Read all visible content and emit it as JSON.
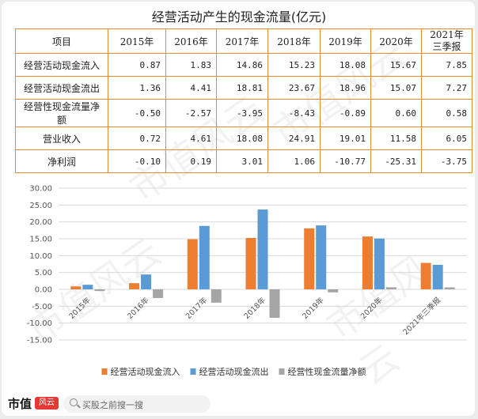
{
  "table": {
    "title": "经营活动产生的现金流量(亿元)",
    "header": [
      "项目",
      "2015年",
      "2016年",
      "2017年",
      "2018年",
      "2019年",
      "2020年",
      "2021年三季报"
    ],
    "rows": [
      {
        "label": "经营活动现金流入",
        "values": [
          "0.87",
          "1.83",
          "14.86",
          "15.23",
          "18.08",
          "15.67",
          "7.85"
        ]
      },
      {
        "label": "经营活动现金流出",
        "values": [
          "1.36",
          "4.41",
          "18.81",
          "23.67",
          "18.96",
          "15.07",
          "7.27"
        ]
      },
      {
        "label": "经营性现金流量净额",
        "values": [
          "-0.50",
          "-2.57",
          "-3.95",
          "-8.43",
          "-0.89",
          "0.60",
          "0.58"
        ]
      },
      {
        "label": "营业收入",
        "values": [
          "0.72",
          "4.61",
          "18.08",
          "24.91",
          "19.01",
          "11.58",
          "6.05"
        ]
      },
      {
        "label": "净利润",
        "values": [
          "-0.10",
          "0.19",
          "3.01",
          "1.06",
          "-10.77",
          "-25.31",
          "-3.75"
        ]
      }
    ]
  },
  "chart_data": {
    "type": "bar",
    "categories": [
      "2015年",
      "2016年",
      "2017年",
      "2018年",
      "2019年",
      "2020年",
      "2021年三季报"
    ],
    "series": [
      {
        "name": "经营活动现金流入",
        "color": "#ed7d31",
        "values": [
          0.87,
          1.83,
          14.86,
          15.23,
          18.08,
          15.67,
          7.85
        ]
      },
      {
        "name": "经营活动现金流出",
        "color": "#5b9bd5",
        "values": [
          1.36,
          4.41,
          18.81,
          23.67,
          18.96,
          15.07,
          7.27
        ]
      },
      {
        "name": "经营性现金流量净额",
        "color": "#a5a5a5",
        "values": [
          -0.5,
          -2.57,
          -3.95,
          -8.43,
          -0.89,
          0.6,
          0.58
        ]
      }
    ],
    "ylim": [
      -15,
      30
    ],
    "yticks": [
      "30.00",
      "25.00",
      "20.00",
      "15.00",
      "10.00",
      "5.00",
      "0.00",
      "-5.00",
      "-10.00",
      "-15.00"
    ],
    "ytick_values": [
      30,
      25,
      20,
      15,
      10,
      5,
      0,
      -5,
      -10,
      -15
    ],
    "grid": true,
    "legend_position": "bottom"
  },
  "footer": {
    "logo_text": "市值",
    "logo_seal": "风云",
    "search_placeholder": "买股之前搜一搜"
  }
}
